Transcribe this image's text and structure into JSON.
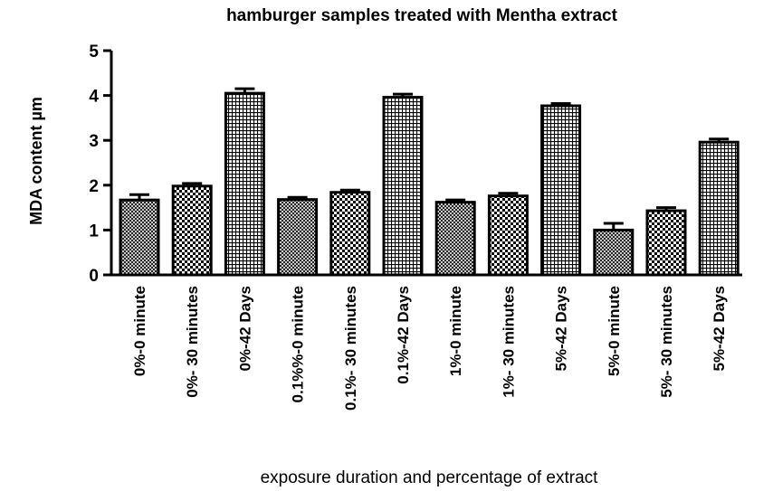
{
  "chart_data": {
    "type": "bar",
    "title": "hamburger samples treated with Mentha extract",
    "xlabel": "exposure duration and percentage of extract",
    "ylabel": "MDA content µm",
    "ylim": [
      0,
      5
    ],
    "yticks": [
      "0",
      "1",
      "2",
      "3",
      "4",
      "5"
    ],
    "grid": false,
    "categories": [
      "0%-0 minute",
      "0%- 30 minutes",
      "0%-42 Days",
      "0.1%%-0 minute",
      "0.1%- 30 minutes",
      "0.1%-42 Days",
      "1%-0 minute",
      "1%- 30 minutes",
      "5%-42 Days",
      "5%-0 minute",
      "5%- 30 minutes",
      "5%-42 Days"
    ],
    "values": [
      1.67,
      1.98,
      4.05,
      1.68,
      1.84,
      3.96,
      1.62,
      1.76,
      3.77,
      1.0,
      1.43,
      2.96
    ],
    "errors": [
      0.12,
      0.06,
      0.1,
      0.05,
      0.05,
      0.07,
      0.05,
      0.06,
      0.05,
      0.15,
      0.07,
      0.07
    ],
    "patterns": [
      "cross",
      "check",
      "grid",
      "cross",
      "check",
      "grid",
      "cross",
      "check",
      "grid",
      "cross",
      "check",
      "grid"
    ]
  }
}
